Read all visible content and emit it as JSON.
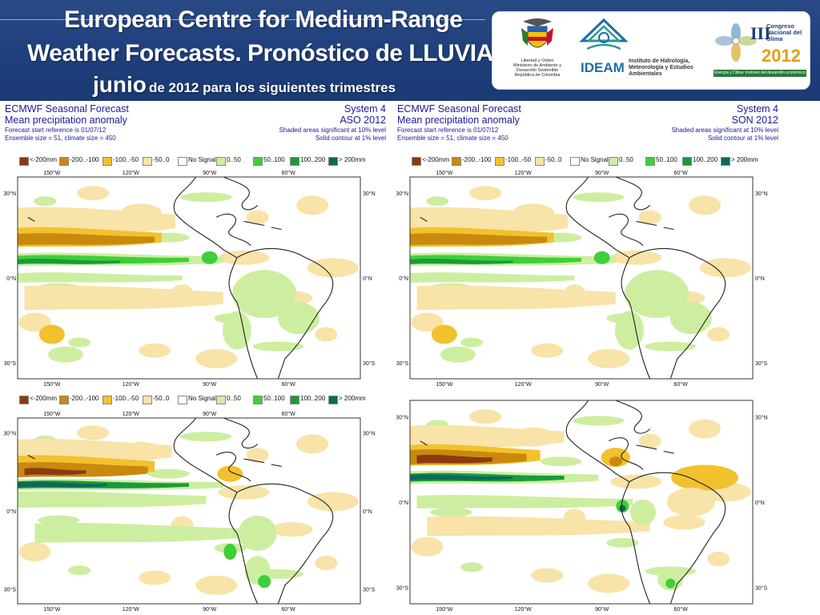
{
  "header": {
    "title_line1": "European Centre for Medium-Range",
    "title_line2": "Weather Forecasts. Pronóstico de LLUVIA.",
    "title_line3_main": "junio",
    "title_line3_rest": "de 2012 para los siguientes trimestres",
    "logos": {
      "ministry_text": "Libertad y Orden\nMinisterio de Ambiente y\nDesarrollo Sostenible\nRepública de Colombia",
      "ideam_word": "IDEAM",
      "ideam_sub": "Instituto de Hidrología, Meteorología y Estudios Ambientales",
      "congreso_text": "Congreso Nacional del Clima",
      "congreso_numeral": "III",
      "congreso_year": "2012",
      "congreso_sub": "Energía y Clima: motores del desarrollo económico"
    }
  },
  "panels": [
    {
      "id": "aso",
      "show_header": true,
      "left1": "ECMWF Seasonal Forecast",
      "left2": "Mean precipitation anomaly",
      "left3": "Forecast start reference is 01/07/12",
      "left4": "Ensemble size = 51, climate size = 450",
      "right1": "System 4",
      "right2": "ASO 2012",
      "right3": "Shaded areas significant at 10% level",
      "right4": "Solid contour at 1% level"
    },
    {
      "id": "son",
      "show_header": true,
      "left1": "ECMWF Seasonal Forecast",
      "left2": "Mean precipitation anomaly",
      "left3": "Forecast start reference is 01/07/12",
      "left4": "Ensemble size = 51, climate size = 450",
      "right1": "System 4",
      "right2": "SON 2012",
      "right3": "Shaded areas significant at 10% level",
      "right4": "Solid contour at 1% level"
    },
    {
      "id": "bottom-left",
      "show_header": false
    },
    {
      "id": "bottom-right",
      "show_header": false
    }
  ],
  "legend": [
    {
      "label": "<-200mm",
      "color": "#8b3a10"
    },
    {
      "label": "-200..-100",
      "color": "#c8890e"
    },
    {
      "label": "-100..-50",
      "color": "#f2c12e"
    },
    {
      "label": "-50..0",
      "color": "#f8e3a8"
    },
    {
      "label": "No Signal",
      "color": "#ffffff"
    },
    {
      "label": "0..50",
      "color": "#cdeea0"
    },
    {
      "label": "50..100",
      "color": "#3fcf3a"
    },
    {
      "label": "100..200",
      "color": "#1a9a3c"
    },
    {
      "label": "> 200mm",
      "color": "#0b6a5a"
    }
  ],
  "map_axes": {
    "lon_top": [
      "150°W",
      "120°W",
      "90°W",
      "60°W"
    ],
    "lon_bottom": [
      "150°W",
      "120°W",
      "90°W",
      "60°W"
    ],
    "lat_labels": [
      "30°N",
      "0°N",
      "30°S"
    ]
  }
}
